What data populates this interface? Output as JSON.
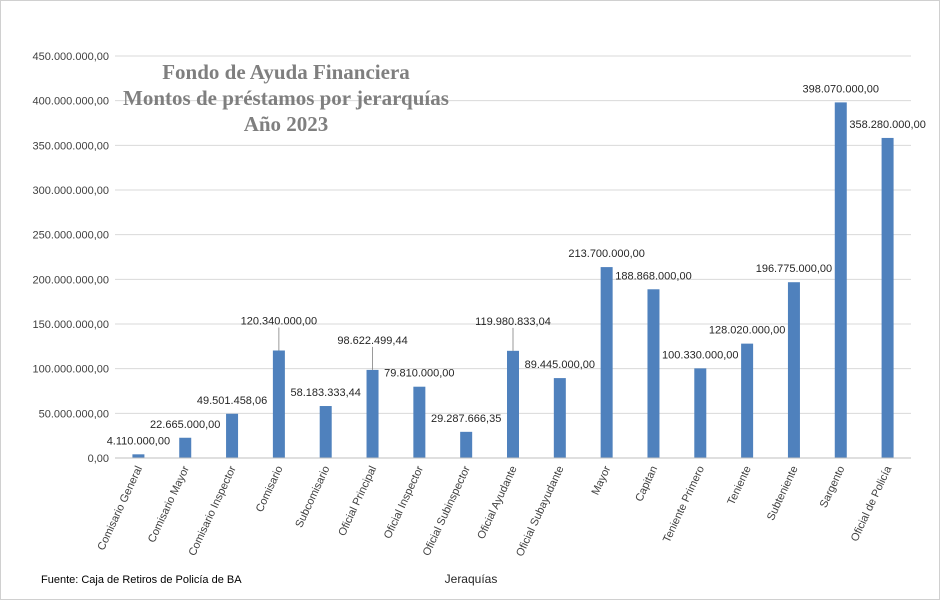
{
  "chart_data": {
    "type": "bar",
    "title_lines": [
      "Fondo de Ayuda Financiera",
      "Montos de préstamos por jerarquías",
      "Año 2023"
    ],
    "xlabel": "Jeraquías",
    "ylabel": "",
    "ylim": [
      0,
      450000000
    ],
    "yticks": [
      0,
      50000000,
      100000000,
      150000000,
      200000000,
      250000000,
      300000000,
      350000000,
      400000000,
      450000000
    ],
    "ytick_labels": [
      "0,00",
      "50.000.000,00",
      "100.000.000,00",
      "150.000.000,00",
      "200.000.000,00",
      "250.000.000,00",
      "300.000.000,00",
      "350.000.000,00",
      "400.000.000,00",
      "450.000.000,00"
    ],
    "grid": true,
    "bar_color": "#4f81bd",
    "categories": [
      "Comisario General",
      "Comisario Mayor",
      "Comisario Inspector",
      "Comisario",
      "Subcomisario",
      "Oficial Principal",
      "Oficial Inspector",
      "Oficial Subinspector",
      "Oficial Ayudante",
      "Oficial Subayudante",
      "Mayor",
      "Capitan",
      "Teniente Primero",
      "Teniente",
      "Subteniente",
      "Sargento",
      "Oficial de Policía"
    ],
    "values": [
      4110000,
      22665000,
      49501458.06,
      120340000,
      58183333.44,
      98622499.44,
      79810000,
      29287666.35,
      119980833.04,
      89445000,
      213700000,
      188868000,
      100330000,
      128020000,
      196775000,
      398070000,
      358280000
    ],
    "data_labels": [
      "4.110.000,00",
      "22.665.000,00",
      "49.501.458,06",
      "120.340.000,00",
      "58.183.333,44",
      "98.622.499,44",
      "79.810.000,00",
      "29.287.666,35",
      "119.980.833,04",
      "89.445.000,00",
      "213.700.000,00",
      "188.868.000,00",
      "100.330.000,00",
      "128.020.000,00",
      "196.775.000,00",
      "398.070.000,00",
      "358.280.000,00"
    ]
  },
  "source_note": "Fuente: Caja de Retiros de Policía de BA"
}
